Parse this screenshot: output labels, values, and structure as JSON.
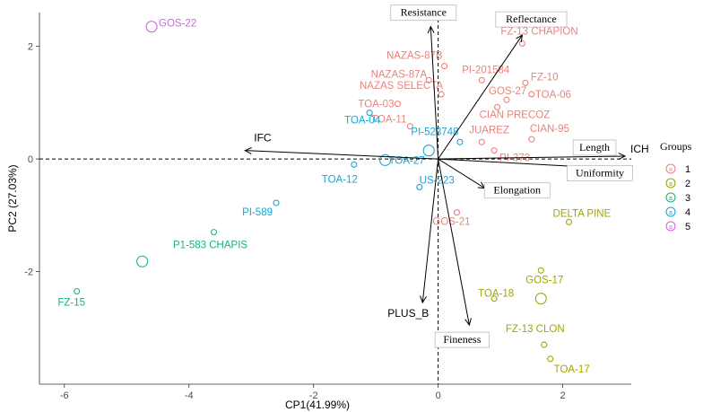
{
  "chart_data": {
    "type": "scatter",
    "subtype": "pca-biplot",
    "xlabel": "CP1(41.99%)",
    "ylabel": "PC2 (27.03%)",
    "xlim": [
      -6.4,
      3.1
    ],
    "ylim": [
      -4.0,
      2.6
    ],
    "x_ticks": [
      -6,
      -4,
      -2,
      0,
      2
    ],
    "y_ticks": [
      -2,
      0,
      2
    ],
    "x_tick_labels": [
      "-6",
      "-4",
      "-2",
      "0",
      "2"
    ],
    "y_tick_labels": [
      "-2",
      "0",
      "2"
    ],
    "grid": false,
    "reference_lines": "dashed at x=0 and y=0",
    "legend": {
      "title": "Groups",
      "placement": "right",
      "entries": [
        {
          "label": "1",
          "color": "#E8837B"
        },
        {
          "label": "2",
          "color": "#A3A500"
        },
        {
          "label": "3",
          "color": "#1BB278"
        },
        {
          "label": "4",
          "color": "#18A5D6"
        },
        {
          "label": "5",
          "color": "#CC66DD"
        }
      ]
    },
    "points": [
      {
        "label": "GOS-22",
        "group": "5",
        "x": -4.6,
        "y": 2.35
      },
      {
        "label": "FZ-13 CHAPION",
        "group": "1",
        "x": 1.35,
        "y": 2.05
      },
      {
        "label": "NAZAS-87B",
        "group": "1",
        "x": 0.1,
        "y": 1.65
      },
      {
        "label": "PI-201584",
        "group": "1",
        "x": 0.7,
        "y": 1.4
      },
      {
        "label": "NAZAS-87A",
        "group": "1",
        "x": -0.15,
        "y": 1.4
      },
      {
        "label": "FZ-10",
        "group": "1",
        "x": 1.4,
        "y": 1.35
      },
      {
        "label": "NAZAS SELECTA",
        "group": "1",
        "x": 0.05,
        "y": 1.15
      },
      {
        "label": "GOS-27",
        "group": "1",
        "x": 1.1,
        "y": 1.05
      },
      {
        "label": "TOA-06",
        "group": "1",
        "x": 1.5,
        "y": 1.15
      },
      {
        "label": "TOA-03",
        "group": "1",
        "x": -0.65,
        "y": 0.98
      },
      {
        "label": "CIAN PRECOZ",
        "group": "1",
        "x": 0.95,
        "y": 0.92
      },
      {
        "label": "TOA-11",
        "group": "1",
        "x": -0.45,
        "y": 0.58
      },
      {
        "label": "JUAREZ",
        "group": "1",
        "x": 0.7,
        "y": 0.3
      },
      {
        "label": "CIAN-95",
        "group": "1",
        "x": 1.5,
        "y": 0.35
      },
      {
        "label": "PI-373",
        "group": "1",
        "x": 0.9,
        "y": 0.15
      },
      {
        "label": "GOS-21",
        "group": "1",
        "x": 0.3,
        "y": -0.95
      },
      {
        "label": "TOA-04",
        "group": "4",
        "x": -1.1,
        "y": 0.82
      },
      {
        "label": "PI-528748",
        "group": "4",
        "x": 0.35,
        "y": 0.3
      },
      {
        "label": "TOA-12",
        "group": "4",
        "x": -1.35,
        "y": -0.1
      },
      {
        "label": "TOA-27",
        "group": "4",
        "x": -0.85,
        "y": -0.02
      },
      {
        "label": "US-223",
        "group": "4",
        "x": -0.3,
        "y": -0.5
      },
      {
        "label": "",
        "group": "4",
        "x": -0.15,
        "y": 0.15
      },
      {
        "label": "PI-589",
        "group": "4",
        "x": -2.6,
        "y": -0.78
      },
      {
        "label": "P1-583 CHAPIS",
        "group": "3",
        "x": -3.6,
        "y": -1.3
      },
      {
        "label": "",
        "group": "3",
        "x": -4.75,
        "y": -1.82
      },
      {
        "label": "FZ-15",
        "group": "3",
        "x": -5.8,
        "y": -2.35
      },
      {
        "label": "DELTA PINE",
        "group": "2",
        "x": 2.1,
        "y": -1.12
      },
      {
        "label": "GOS-17",
        "group": "2",
        "x": 1.65,
        "y": -1.98
      },
      {
        "label": "TOA-18",
        "group": "2",
        "x": 0.9,
        "y": -2.48
      },
      {
        "label": "",
        "group": "2",
        "x": 1.65,
        "y": -2.48
      },
      {
        "label": "FZ-13 CLON",
        "group": "2",
        "x": 1.7,
        "y": -3.3
      },
      {
        "label": "TOA-17",
        "group": "2",
        "x": 1.8,
        "y": -3.55
      }
    ],
    "variables": [
      {
        "label": "Resistance",
        "x": -0.12,
        "y": 2.35
      },
      {
        "label": "Reflectance",
        "x": 1.35,
        "y": 2.2
      },
      {
        "label": "IFC",
        "x": -3.1,
        "y": 0.15
      },
      {
        "label": "Length",
        "x": 3.0,
        "y": 0.05
      },
      {
        "label": "ICH",
        "x": 3.0,
        "y": 0.05
      },
      {
        "label": "Uniformity",
        "x": 3.0,
        "y": -0.18
      },
      {
        "label": "Elongation",
        "x": 0.75,
        "y": -0.52
      },
      {
        "label": "PLUS_B",
        "x": -0.25,
        "y": -2.55
      },
      {
        "label": "Fineness",
        "x": 0.5,
        "y": -2.95
      }
    ]
  }
}
